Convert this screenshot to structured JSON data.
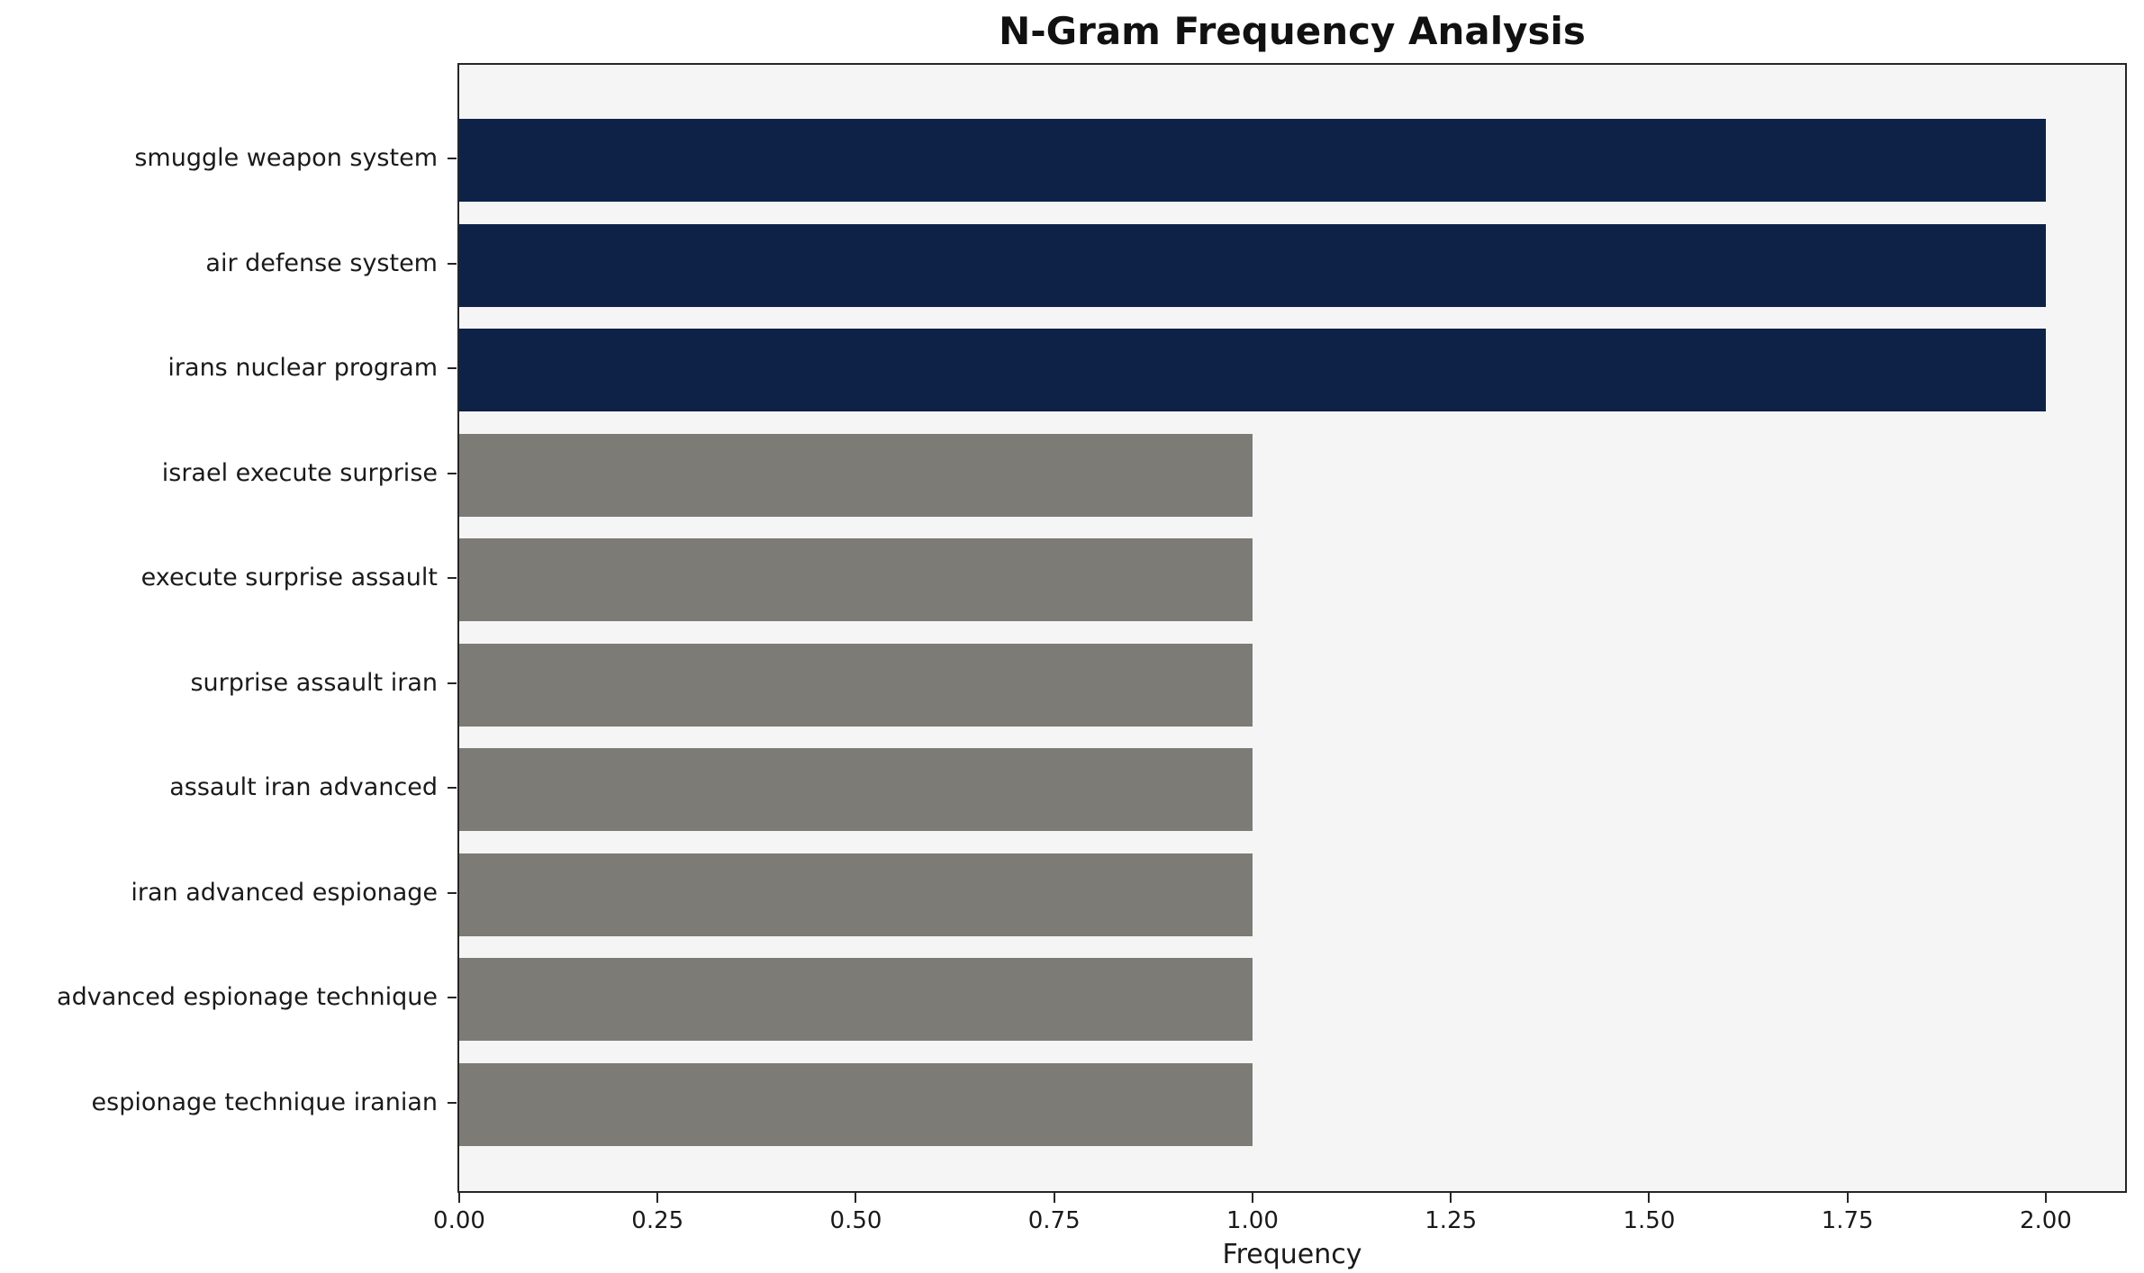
{
  "chart_data": {
    "type": "bar",
    "orientation": "horizontal",
    "title": "N-Gram Frequency Analysis",
    "xlabel": "Frequency",
    "ylabel": "",
    "categories": [
      "smuggle weapon system",
      "air defense system",
      "irans nuclear program",
      "israel execute surprise",
      "execute surprise assault",
      "surprise assault iran",
      "assault iran advanced",
      "iran advanced espionage",
      "advanced espionage technique",
      "espionage technique iranian"
    ],
    "values": [
      2,
      2,
      2,
      1,
      1,
      1,
      1,
      1,
      1,
      1
    ],
    "bar_colors": [
      "#0e2247",
      "#0e2247",
      "#0e2247",
      "#7c7b76",
      "#7c7b76",
      "#7c7b76",
      "#7c7b76",
      "#7c7b76",
      "#7c7b76",
      "#7c7b76"
    ],
    "xlim": [
      0,
      2.1
    ],
    "x_tick_values": [
      0,
      0.25,
      0.5,
      0.75,
      1.0,
      1.25,
      1.5,
      1.75,
      2.0
    ],
    "x_tick_labels": [
      "0.00",
      "0.25",
      "0.50",
      "0.75",
      "1.00",
      "1.25",
      "1.50",
      "1.75",
      "2.00"
    ],
    "grid": false,
    "legend": "none",
    "plot_bg": "#f5f5f5",
    "frame_color": "#262626",
    "text_color": "#1a1a1a"
  }
}
